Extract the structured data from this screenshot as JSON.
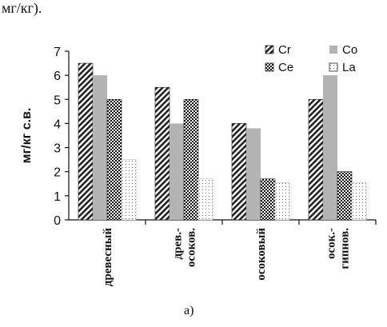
{
  "header_fragment": "мг/кг).",
  "caption": "а)",
  "chart_data": {
    "type": "bar",
    "ylabel": "мг/кг с.в.",
    "ylim": [
      0,
      7
    ],
    "yticks": [
      "0",
      "1",
      "2",
      "3",
      "4",
      "5",
      "6",
      "7"
    ],
    "categories": [
      [
        "древесный"
      ],
      [
        "древ.-",
        "осоков."
      ],
      [
        "осоковый"
      ],
      [
        "осок.-",
        "гипнов."
      ]
    ],
    "series": [
      {
        "name": "Cr",
        "values": [
          6.5,
          5.5,
          4.0,
          5.0
        ],
        "pattern": "diagonal"
      },
      {
        "name": "Co",
        "values": [
          6.0,
          4.0,
          3.8,
          6.0
        ],
        "pattern": "solid-gray",
        "color": "#b3b3b3"
      },
      {
        "name": "Ce",
        "values": [
          5.0,
          5.0,
          1.7,
          2.0
        ],
        "pattern": "checker"
      },
      {
        "name": "La",
        "values": [
          2.5,
          1.7,
          1.55,
          1.55
        ],
        "pattern": "dots"
      }
    ],
    "legend_position": "top-right",
    "grid": false
  }
}
